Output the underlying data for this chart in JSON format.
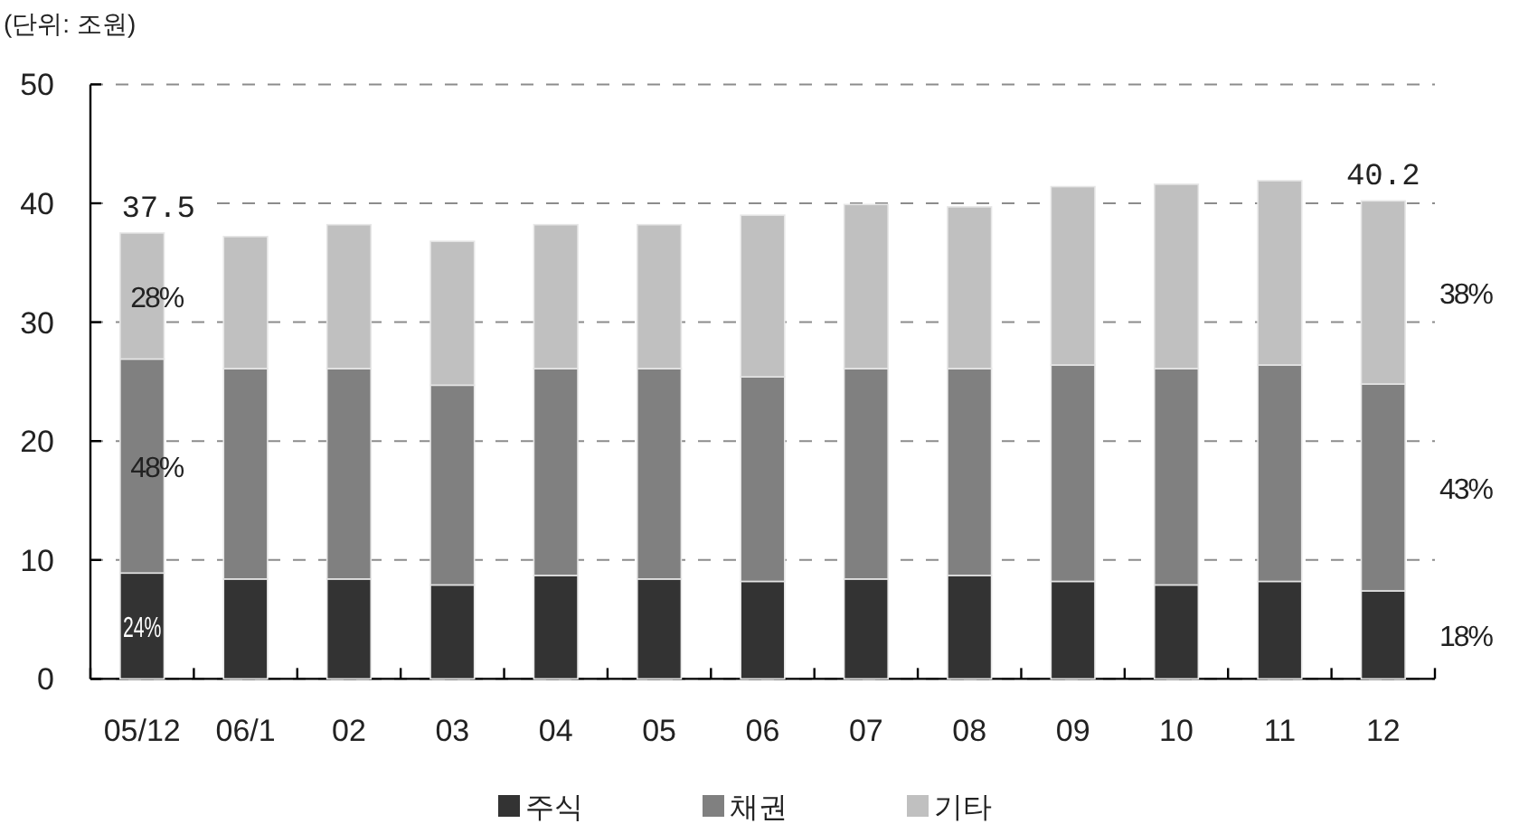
{
  "chart_data": {
    "type": "bar",
    "stacked": true,
    "ylabel": "(단위: 조원)",
    "categories": [
      "05/12",
      "06/1",
      "02",
      "03",
      "04",
      "05",
      "06",
      "07",
      "08",
      "09",
      "10",
      "11",
      "12"
    ],
    "series": [
      {
        "name": "주식",
        "color": "#333333",
        "values": [
          8.9,
          8.4,
          8.4,
          7.9,
          8.7,
          8.4,
          8.2,
          8.4,
          8.7,
          8.2,
          7.9,
          8.2,
          7.4
        ]
      },
      {
        "name": "채권",
        "color": "#808080",
        "values": [
          18.0,
          17.7,
          17.7,
          16.8,
          17.4,
          17.7,
          17.2,
          17.7,
          17.4,
          18.2,
          18.2,
          18.2,
          17.4
        ]
      },
      {
        "name": "기타",
        "color": "#c0c0c0",
        "values": [
          10.6,
          11.1,
          12.1,
          12.1,
          12.1,
          12.1,
          13.6,
          13.8,
          13.6,
          15.0,
          15.5,
          15.5,
          15.4
        ]
      }
    ],
    "totals": [
      "37.5",
      null,
      null,
      null,
      null,
      null,
      null,
      null,
      null,
      null,
      null,
      null,
      "40.2"
    ],
    "annotations": [
      "24%",
      "48%",
      "28%",
      "18%",
      "43%",
      "38%"
    ],
    "ylim": [
      0,
      50
    ],
    "yticks": [
      0,
      10,
      20,
      30,
      40,
      50
    ],
    "grid": "y",
    "legend": "bottom"
  }
}
